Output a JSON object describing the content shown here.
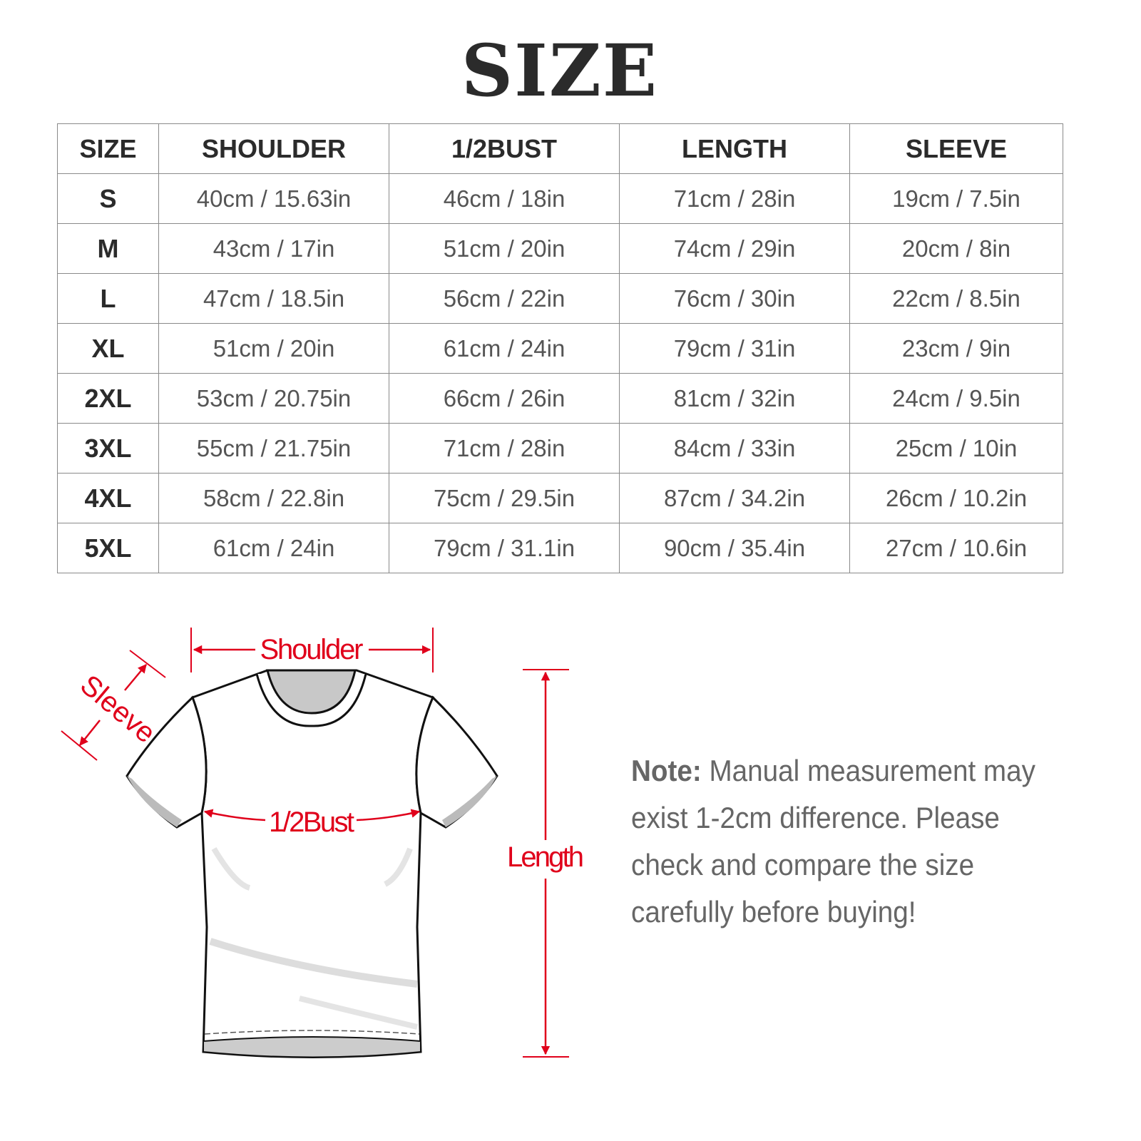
{
  "title": "SIZE",
  "table": {
    "headers": [
      "SIZE",
      "SHOULDER",
      "1/2BUST",
      "LENGTH",
      "SLEEVE"
    ],
    "rows": [
      [
        "S",
        "40cm / 15.63in",
        "46cm / 18in",
        "71cm / 28in",
        "19cm / 7.5in"
      ],
      [
        "M",
        "43cm / 17in",
        "51cm / 20in",
        "74cm / 29in",
        "20cm / 8in"
      ],
      [
        "L",
        "47cm / 18.5in",
        "56cm / 22in",
        "76cm / 30in",
        "22cm / 8.5in"
      ],
      [
        "XL",
        "51cm / 20in",
        "61cm / 24in",
        "79cm / 31in",
        "23cm / 9in"
      ],
      [
        "2XL",
        "53cm / 20.75in",
        "66cm / 26in",
        "81cm / 32in",
        "24cm / 9.5in"
      ],
      [
        "3XL",
        "55cm / 21.75in",
        "71cm / 28in",
        "84cm / 33in",
        "25cm / 10in"
      ],
      [
        "4XL",
        "58cm / 22.8in",
        "75cm / 29.5in",
        "87cm / 34.2in",
        "26cm / 10.2in"
      ],
      [
        "5XL",
        "61cm / 24in",
        "79cm / 31.1in",
        "90cm / 35.4in",
        "27cm / 10.6in"
      ]
    ]
  },
  "diagram": {
    "shoulder_label": "Shoulder",
    "sleeve_label": "Sleeve",
    "bust_label": "1/2Bust",
    "length_label": "Length",
    "accent_color": "#e0001b"
  },
  "note": {
    "label": "Note:",
    "text": " Manual measurement may exist 1-2cm difference. Please check and compare the size carefully before buying!"
  }
}
